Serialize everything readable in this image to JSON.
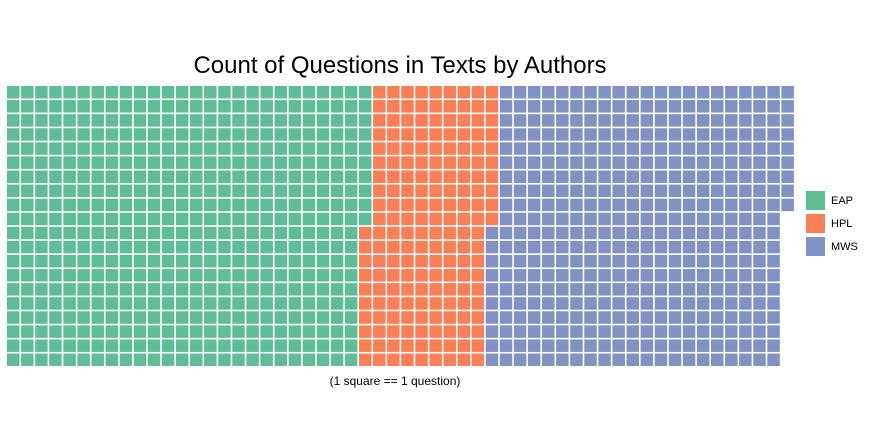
{
  "chart_data": {
    "type": "waffle",
    "title": "Count of Questions in Texts by Authors",
    "caption": "(1 square == 1 question)",
    "rows": 20,
    "categories": [
      "EAP",
      "HPL",
      "MWS"
    ],
    "values": [
      510,
      180,
      419
    ],
    "colors": [
      "#5ebd97",
      "#fc7e55",
      "#8191c3"
    ],
    "legend": {
      "position": "right",
      "entries": [
        {
          "label": "EAP",
          "color": "#5ebd97"
        },
        {
          "label": "HPL",
          "color": "#fc7e55"
        },
        {
          "label": "MWS",
          "color": "#8191c3"
        }
      ]
    },
    "grid": false
  }
}
